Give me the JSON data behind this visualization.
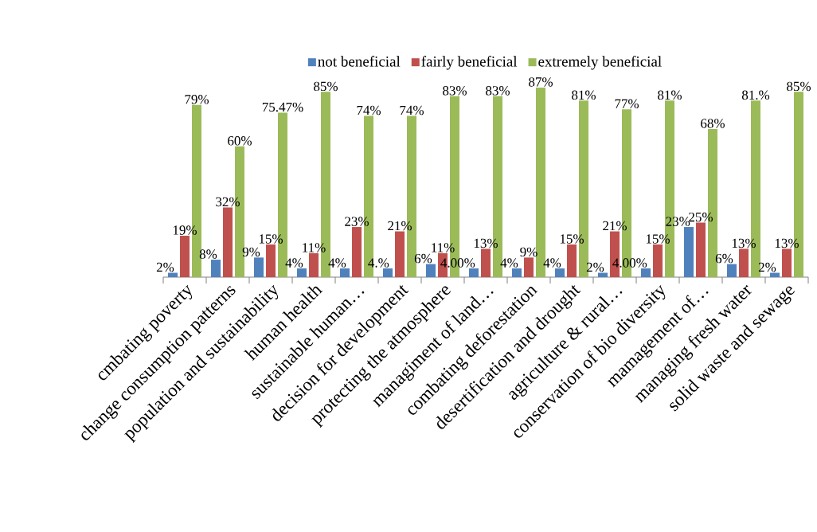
{
  "chart_data": {
    "type": "bar",
    "categories": [
      "cmbating poverty",
      "change consumption patterns",
      "population and sustainability",
      "human health",
      "sustainable human…",
      "decision for  development",
      "protecting the atmosphere",
      "managiment of land…",
      "combating deforestation",
      "desertification and drought",
      "agriculture & rural…",
      "conservation of bio diversity",
      "mamagement of…",
      "managing fresh water",
      "solid waste and sewage"
    ],
    "series": [
      {
        "name": "not beneficial",
        "color": "#4f81bd",
        "values": [
          2,
          8,
          9,
          4,
          4,
          4,
          6,
          4,
          4,
          4,
          2,
          4,
          23,
          6,
          2
        ],
        "value_labels": [
          "2%",
          "8%",
          "9%",
          "4%",
          "4%",
          "4.%",
          "6%",
          "4.00%",
          "4%",
          "4%",
          "2%",
          "4.00%",
          "23%",
          "6%",
          "2%"
        ]
      },
      {
        "name": "fairly beneficial",
        "color": "#c0504d",
        "values": [
          19,
          32,
          15,
          11,
          23,
          21,
          11,
          13,
          9,
          15,
          21,
          15,
          25,
          13,
          13
        ],
        "value_labels": [
          "19%",
          "32%",
          "15%",
          "11%",
          "23%",
          "21%",
          "11%",
          "13%",
          "9%",
          "15%",
          "21%",
          "15%",
          "25%",
          "13%",
          "13%"
        ]
      },
      {
        "name": "extremely beneficial",
        "color": "#9bbb59",
        "values": [
          79,
          60,
          75.47,
          85,
          74,
          74,
          83,
          83,
          87,
          81,
          77,
          81,
          68,
          81,
          85
        ],
        "value_labels": [
          "79%",
          "60%",
          "75.47%",
          "85%",
          "74%",
          "74%",
          "83%",
          "83%",
          "87%",
          "81%",
          "77%",
          "81%",
          "68%",
          "81.%",
          "85%"
        ]
      }
    ],
    "legend": "top"
  }
}
